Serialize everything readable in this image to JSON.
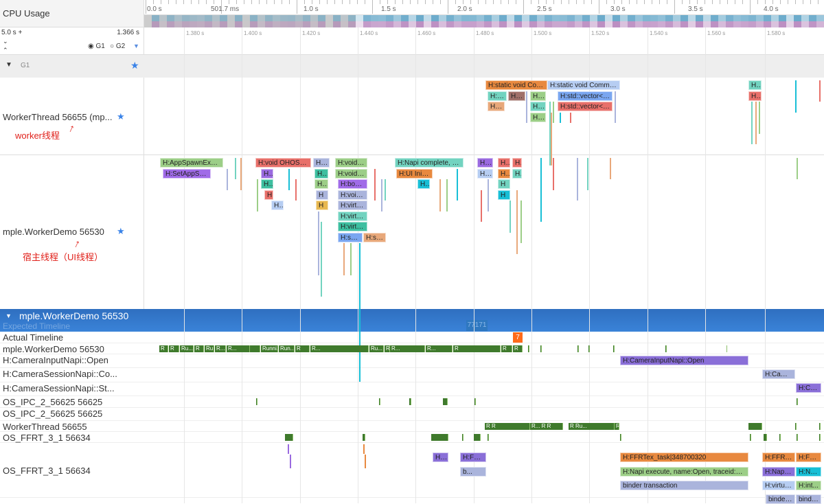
{
  "header": {
    "cpu_usage_label": "CPU Usage",
    "range_start": "5.0 s +",
    "range_value": "1.366 s",
    "group_g1": "G1",
    "group_g2": "G2",
    "expand_glyph": "⌄",
    "collapse_glyph": "⌃"
  },
  "overview_ticks": [
    "0.0 s",
    "501.7 ms",
    "1.0 s",
    "1.5 s",
    "2.0 s",
    "2.5 s",
    "3.0 s",
    "3.5 s",
    "4.0 s"
  ],
  "detail_ticks": [
    "1.380 s",
    "1.400 s",
    "1.420 s",
    "1.440 s",
    "1.460 s",
    "1.480 s",
    "1.500 s",
    "1.520 s",
    "1.540 s",
    "1.560 s",
    "1.580 s"
  ],
  "group": {
    "name": "G1"
  },
  "worker": {
    "label": "WorkerThread 56655 (mp...",
    "annotation": "worker线程",
    "slices": [
      {
        "label": "H:static void Com...",
        "color": "#e8893f"
      },
      {
        "label": "H:static void Commonli...",
        "color": "#b6cdf2"
      },
      {
        "label": "H...",
        "color": "#72d3c0"
      },
      {
        "label": "H:E...",
        "color": "#72d3c0"
      },
      {
        "label": "H:...",
        "color": "#a0706a"
      },
      {
        "label": "H:...",
        "color": "#9cce87"
      },
      {
        "label": "H:std::vector<s...",
        "color": "#7aa6f0"
      },
      {
        "label": "H...",
        "color": "#e8706a"
      },
      {
        "label": "H:E...",
        "color": "#e8a87a"
      },
      {
        "label": "H:...",
        "color": "#72d3c0"
      },
      {
        "label": "H:std::vector<s...",
        "color": "#e8706a"
      },
      {
        "label": "H:...",
        "color": "#9cce87"
      }
    ]
  },
  "main": {
    "label": "mple.WorkerDemo 56530",
    "annotation": "宿主线程（UI线程）",
    "slices": [
      {
        "label": "H:AppSpawnExecut...",
        "color": "#9cce87"
      },
      {
        "label": "H:void OHOS::App...",
        "color": "#e8706a"
      },
      {
        "label": "H:v...",
        "color": "#aab4dc"
      },
      {
        "label": "H:void OHOS::Ab...",
        "color": "#9cce87"
      },
      {
        "label": "H:Napi complete, name...",
        "color": "#72d3c0"
      },
      {
        "label": "H:...",
        "color": "#9a6ae0"
      },
      {
        "label": "H:...",
        "color": "#e8706a"
      },
      {
        "label": "H",
        "color": "#e8706a"
      },
      {
        "label": "H:SetAppSan...",
        "color": "#a06be8"
      },
      {
        "label": "H:sta...",
        "color": "#9a6ae0"
      },
      {
        "label": "H...",
        "color": "#3dbfa0"
      },
      {
        "label": "H:void OHOS::Ab...",
        "color": "#9cce87"
      },
      {
        "label": "H:UI Initialize:Wo...",
        "color": "#e8893f"
      },
      {
        "label": "H:...",
        "color": "#b6cdf2"
      },
      {
        "label": "H...",
        "color": "#e8893f"
      },
      {
        "label": "H",
        "color": "#72d3c0"
      },
      {
        "label": "H:boo...",
        "color": "#3dbfa0"
      },
      {
        "label": "H...",
        "color": "#9cce87"
      },
      {
        "label": "H:bool OHOS:...",
        "color": "#a06be8"
      },
      {
        "label": "H...",
        "color": "#17bfd6"
      },
      {
        "label": "H",
        "color": "#72d3c0"
      },
      {
        "label": "H...",
        "color": "#e8706a"
      },
      {
        "label": "H",
        "color": "#aab4dc"
      },
      {
        "label": "H:void OHOS:...",
        "color": "#aab4dc"
      },
      {
        "label": "H",
        "color": "#17bfd6"
      },
      {
        "label": "H...",
        "color": "#b6cdf2"
      },
      {
        "label": "H",
        "color": "#e8b850"
      },
      {
        "label": "H:virtual voi...",
        "color": "#aab4dc"
      },
      {
        "label": "H:virtual voi...",
        "color": "#72d3c0"
      },
      {
        "label": "H:virtual voi...",
        "color": "#3dbfa0"
      },
      {
        "label": "H:sce...",
        "color": "#7aa6f0"
      },
      {
        "label": "H:sc...",
        "color": "#e8a87a"
      }
    ]
  },
  "process": {
    "name": "mple.WorkerDemo 56530",
    "expected_timeline": "Expected Timeline",
    "expected_badge": "77171",
    "actual_timeline": "Actual Timeline",
    "actual_badge": "7",
    "rows": [
      {
        "label": "mple.WorkerDemo 56530"
      },
      {
        "label": "H:CameraInputNapi::Open"
      },
      {
        "label": "H:CameraSessionNapi::Co..."
      },
      {
        "label": "H:CameraSessionNapi::St..."
      },
      {
        "label": "OS_IPC_2_56625 56625"
      },
      {
        "label": "OS_IPC_2_56625 56625"
      },
      {
        "label": "WorkerThread 56655"
      },
      {
        "label": "OS_FFRT_3_1 56634"
      },
      {
        "label": "OS_FFRT_3_1 56634"
      }
    ],
    "main_states": [
      "R",
      "R",
      "Ru...",
      "R",
      "Ru...",
      "R...",
      "R...",
      "Runni...",
      "Run...",
      "R",
      "R...",
      "Ru...",
      "R",
      "R...",
      "R...",
      "R",
      "R",
      "R"
    ],
    "worker_states": [
      "R R",
      "R... R R",
      "R Ru...",
      "R... R"
    ],
    "slices": [
      {
        "label": "H:CameraInputNapi::Open",
        "color": "#8a6fd8"
      },
      {
        "label": "H:Camera...",
        "color": "#aab4dc"
      },
      {
        "label": "H:Cam...",
        "color": "#8a6fd8"
      },
      {
        "label": "H:...",
        "color": "#8a6fd8"
      },
      {
        "label": "H:FFR...",
        "color": "#8a6fd8"
      },
      {
        "label": "b...",
        "color": "#aab4dc"
      },
      {
        "label": "H:FFRTex_task|348700320",
        "color": "#e8893f"
      },
      {
        "label": "H:Napi execute, name:Open, traceid:0x0",
        "color": "#9cce87"
      },
      {
        "label": "binder transaction",
        "color": "#aab4dc"
      },
      {
        "label": "H:FFRTex...",
        "color": "#e8893f"
      },
      {
        "label": "H:FFR...",
        "color": "#e8893f"
      },
      {
        "label": "H:Napi e...",
        "color": "#8a6fd8"
      },
      {
        "label": "H:Nap...",
        "color": "#17bfd6"
      },
      {
        "label": "H:virtua...",
        "color": "#b6cdf2"
      },
      {
        "label": "H:int...",
        "color": "#9cce87"
      },
      {
        "label": "binder...",
        "color": "#aab4dc"
      },
      {
        "label": "binde...",
        "color": "#aab4dc"
      }
    ]
  },
  "colors": {
    "accent": "#3a83d8",
    "annotation": "#e0201a",
    "star": "#3a83e8",
    "badge": "#ff6a1a",
    "state_running": "#3f7a2c"
  }
}
